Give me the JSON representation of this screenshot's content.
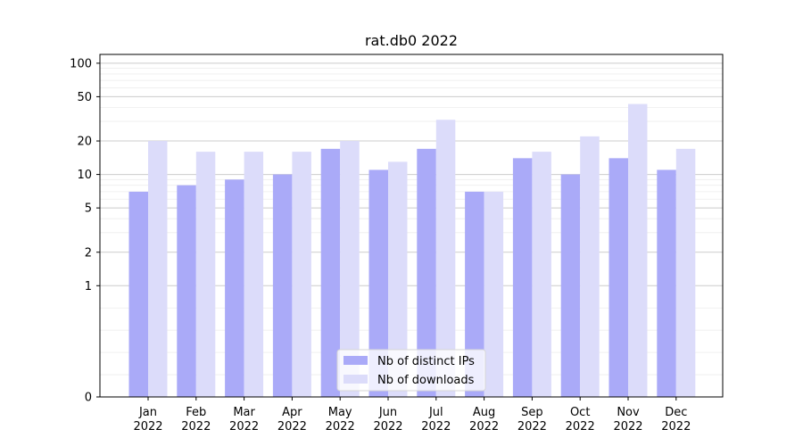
{
  "chart_data": {
    "type": "bar",
    "title": "rat.db0 2022",
    "xlabel": "",
    "ylabel": "",
    "yscale": "symlog",
    "ylim": [
      0,
      120
    ],
    "grid": true,
    "legend_position": "bottom-center",
    "categories": [
      "Jan\n2022",
      "Feb\n2022",
      "Mar\n2022",
      "Apr\n2022",
      "May\n2022",
      "Jun\n2022",
      "Jul\n2022",
      "Aug\n2022",
      "Sep\n2022",
      "Oct\n2022",
      "Nov\n2022",
      "Dec\n2022"
    ],
    "y_ticks": [
      0,
      1,
      2,
      5,
      10,
      20,
      50,
      100
    ],
    "series": [
      {
        "name": "Nb of distinct IPs",
        "color": "#aaaaf8",
        "values": [
          7,
          8,
          9,
          10,
          17,
          11,
          17,
          7,
          14,
          10,
          14,
          11
        ]
      },
      {
        "name": "Nb of downloads",
        "color": "#dcdcfa",
        "values": [
          20,
          16,
          16,
          16,
          20,
          13,
          31,
          7,
          16,
          22,
          43,
          17
        ]
      }
    ]
  }
}
